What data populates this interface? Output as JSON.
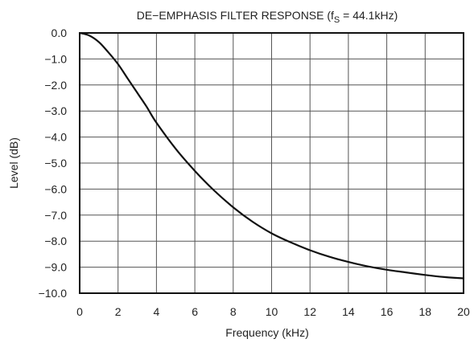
{
  "chart_data": {
    "type": "line",
    "title": {
      "main": "DE−EMPHASIS FILTER RESPONSE (f",
      "subscript": "S",
      "rest": " = 44.1kHz)"
    },
    "xlabel": "Frequency (kHz)",
    "ylabel": "Level (dB)",
    "xlim": [
      0,
      20
    ],
    "ylim": [
      -10,
      0
    ],
    "x_ticks": [
      0,
      2,
      4,
      6,
      8,
      10,
      12,
      14,
      16,
      18,
      20
    ],
    "x_tick_labels": [
      "0",
      "2",
      "4",
      "6",
      "8",
      "10",
      "12",
      "14",
      "16",
      "18",
      "20"
    ],
    "y_ticks": [
      0,
      -1,
      -2,
      -3,
      -4,
      -5,
      -6,
      -7,
      -8,
      -9,
      -10
    ],
    "y_tick_labels": [
      "0.0",
      "−1.0",
      "−2.0",
      "−3.0",
      "−4.0",
      "−5.0",
      "−6.0",
      "−7.0",
      "−8.0",
      "−9.0",
      "−10.0"
    ],
    "grid": true,
    "line_color": "#111111",
    "grid_color": "#555555",
    "series": [
      {
        "x": [
          0,
          0.5,
          1,
          1.5,
          2,
          2.5,
          3,
          3.5,
          4,
          5,
          6,
          7,
          8,
          9,
          10,
          11,
          12,
          13,
          14,
          15,
          16,
          17,
          18,
          19,
          20
        ],
        "values": [
          0,
          -0.1,
          -0.35,
          -0.75,
          -1.2,
          -1.75,
          -2.3,
          -2.85,
          -3.45,
          -4.45,
          -5.3,
          -6.05,
          -6.7,
          -7.25,
          -7.7,
          -8.05,
          -8.35,
          -8.6,
          -8.8,
          -8.97,
          -9.1,
          -9.2,
          -9.3,
          -9.38,
          -9.43
        ]
      }
    ]
  }
}
